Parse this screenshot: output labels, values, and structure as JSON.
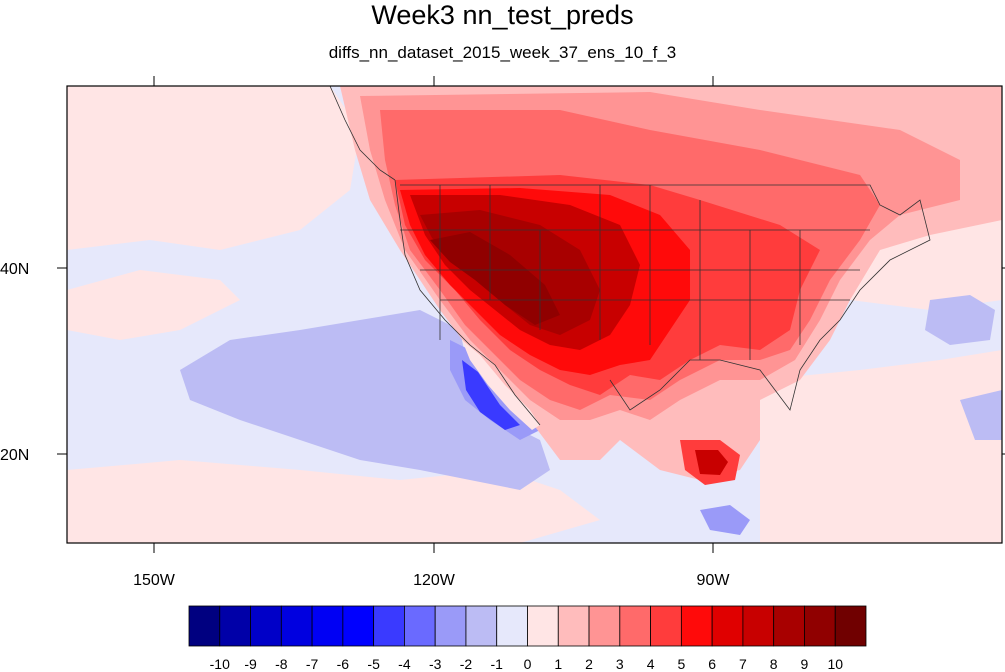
{
  "figure": {
    "title": "Week3 nn_test_preds",
    "subtitle": "diffs_nn_dataset_2015_week_37_ens_10_f_3"
  },
  "axes": {
    "x_ticks": [
      "150W",
      "120W",
      "90W"
    ],
    "y_ticks": [
      "40N",
      "20N"
    ],
    "lon_range": [
      -159,
      -61
    ],
    "lat_range": [
      10,
      60
    ]
  },
  "colorbar": {
    "labels": [
      "-10",
      "-9",
      "-8",
      "-7",
      "-6",
      "-5",
      "-4",
      "-3",
      "-2",
      "-1",
      "0",
      "1",
      "2",
      "3",
      "4",
      "5",
      "6",
      "7",
      "8",
      "9",
      "10"
    ],
    "colors": [
      "#000080",
      "#0000a8",
      "#0000c8",
      "#0000e0",
      "#0000f4",
      "#0000ff",
      "#3a3aff",
      "#6a6aff",
      "#9a9af8",
      "#bcbcf4",
      "#e6e8fb",
      "#ffe5e5",
      "#ffbcbc",
      "#ff9494",
      "#ff6a6a",
      "#ff3c3c",
      "#ff0a0a",
      "#e00000",
      "#c80000",
      "#a80000",
      "#900000",
      "#700000"
    ]
  },
  "palette": {
    "ocean_neutral": "#e6e8fb",
    "light_pink": "#ffe5e5",
    "pink": "#ffbcbc",
    "salmon": "#ff9494",
    "red_light": "#ff6a6a",
    "red": "#ff3c3c",
    "red_strong": "#ff0a0a",
    "dark_red": "#c80000",
    "darkest_red": "#900000",
    "blue_light": "#bcbcf4",
    "blue_mid": "#9a9af8",
    "blue_strong": "#3a3aff"
  }
}
